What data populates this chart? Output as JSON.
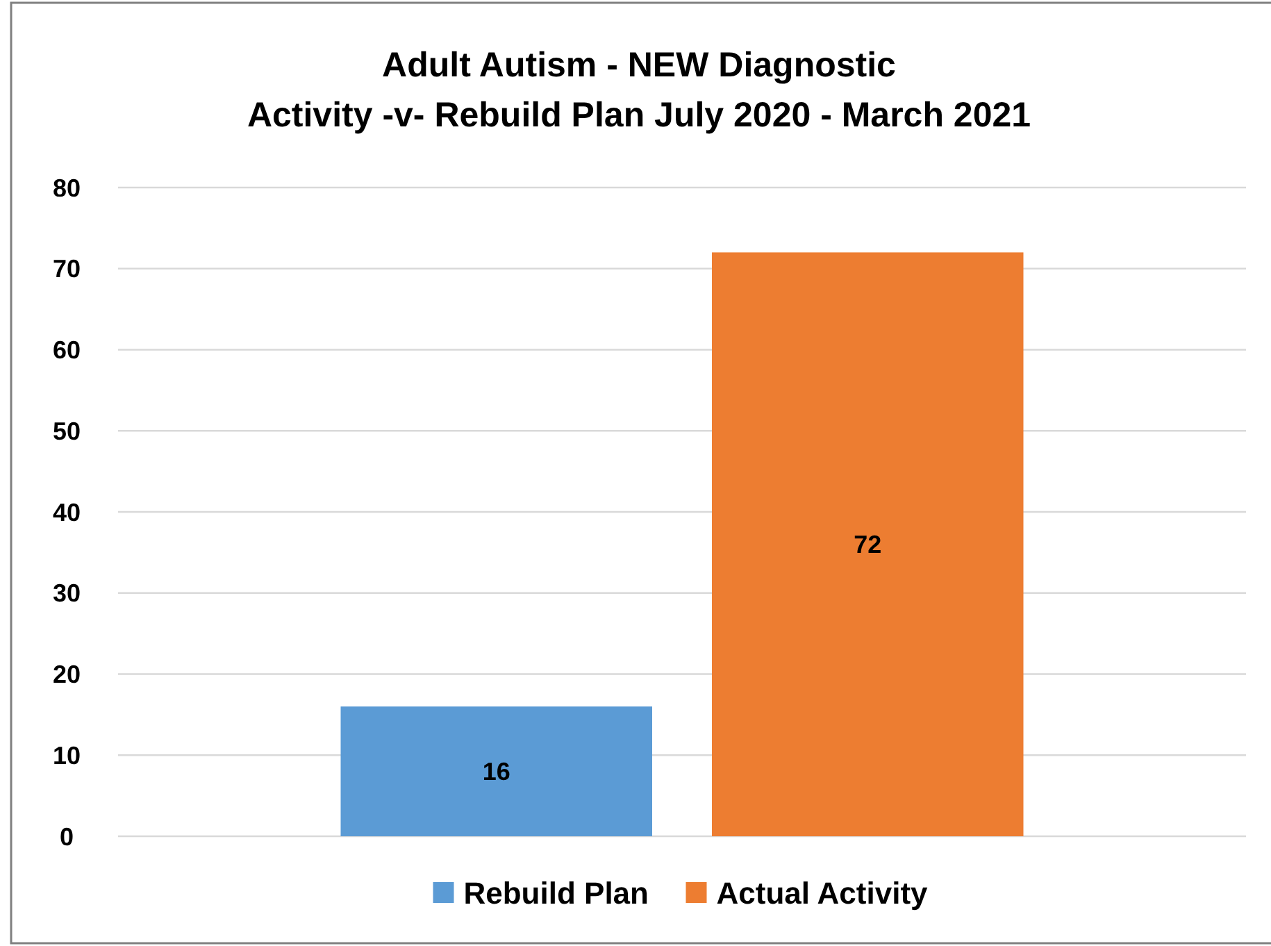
{
  "chart_data": {
    "type": "bar",
    "title": "Adult Autism - NEW Diagnostic\nActivity -v- Rebuild Plan  July 2020 - March 2021",
    "categories": [
      null
    ],
    "series": [
      {
        "name": "Rebuild Plan",
        "color": "#5b9bd5",
        "values": [
          16
        ]
      },
      {
        "name": "Actual Activity",
        "color": "#ed7d31",
        "values": [
          72
        ]
      }
    ],
    "ylim": [
      0,
      80
    ],
    "yticks": [
      0,
      10,
      20,
      30,
      40,
      50,
      60,
      70,
      80
    ],
    "grid": "y",
    "legend": "bottom",
    "data_labels": true
  }
}
